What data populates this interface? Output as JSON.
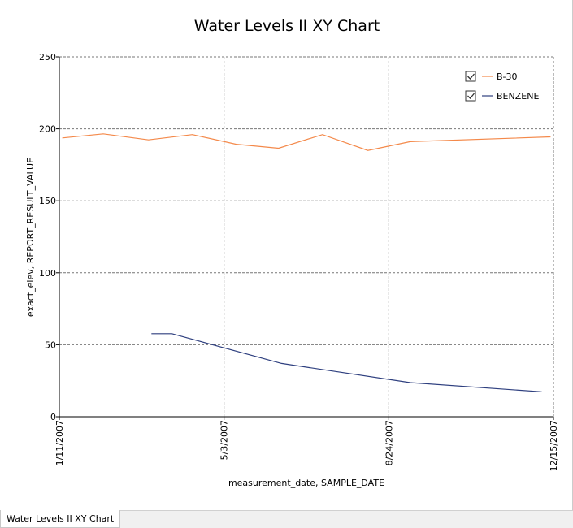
{
  "chart_data": {
    "type": "line",
    "title": "Water Levels II XY Chart",
    "xlabel": "measurement_date, SAMPLE_DATE",
    "ylabel": "exact_elev, REPORT_RESULT_VALUE",
    "xlim": [
      "2007-01-11",
      "2007-12-15"
    ],
    "ylim": [
      0,
      250
    ],
    "x_ticks": [
      "1/11/2007",
      "5/3/2007",
      "8/24/2007",
      "12/15/2007"
    ],
    "y_ticks": [
      0,
      50,
      100,
      150,
      200,
      250
    ],
    "grid": true,
    "legend_position": "top-right",
    "series": [
      {
        "name": "B-30",
        "color": "#f4894a",
        "checked": true,
        "x": [
          "2007-01-13",
          "2007-02-10",
          "2007-03-13",
          "2007-04-12",
          "2007-05-12",
          "2007-06-10",
          "2007-07-10",
          "2007-08-10",
          "2007-09-08",
          "2007-12-13"
        ],
        "y": [
          193.7,
          196.5,
          192.3,
          196.0,
          189.3,
          186.5,
          196.0,
          185.0,
          191.1,
          194.4
        ]
      },
      {
        "name": "BENZENE",
        "color": "#2e3f7f",
        "checked": true,
        "x": [
          "2007-03-15",
          "2007-03-29",
          "2007-06-12",
          "2007-09-08",
          "2007-12-07"
        ],
        "y": [
          57.7,
          57.7,
          37.0,
          23.7,
          17.3
        ]
      }
    ]
  },
  "tab": {
    "label": "Water Levels II XY Chart"
  }
}
